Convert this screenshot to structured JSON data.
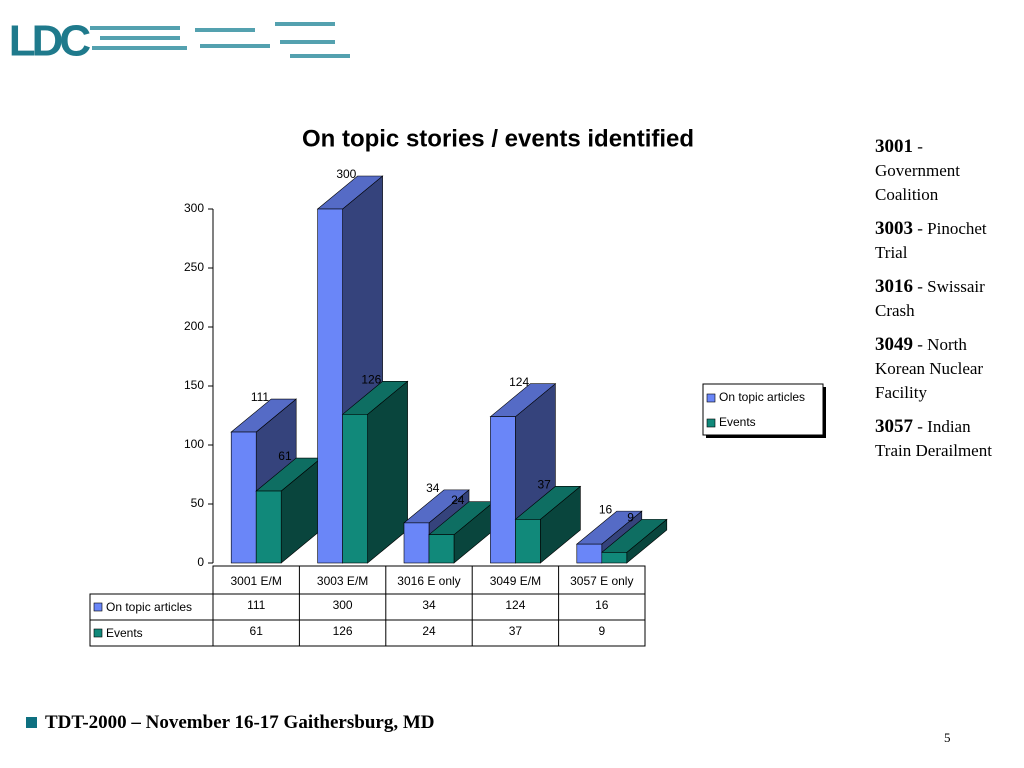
{
  "logo": "LDC",
  "chart_data": {
    "type": "bar3d",
    "title": "On topic stories / events identified",
    "categories": [
      "3001  E/M",
      "3003 E/M",
      "3016 E only",
      "3049 E/M",
      "3057 E only"
    ],
    "series": [
      {
        "name": "On topic articles",
        "color": "#6a86f8",
        "values": [
          111,
          300,
          34,
          124,
          16
        ]
      },
      {
        "name": "Events",
        "color": "#11897a",
        "values": [
          61,
          126,
          24,
          37,
          9
        ]
      }
    ],
    "ylim": [
      0,
      300
    ],
    "yticks": [
      0,
      50,
      100,
      150,
      200,
      250,
      300
    ],
    "legend": "right",
    "data_table": true
  },
  "sidebar": [
    {
      "code": "3001",
      "desc": "- Government Coalition"
    },
    {
      "code": "3003",
      "desc": "- Pinochet Trial"
    },
    {
      "code": "3016",
      "desc": "- Swissair Crash"
    },
    {
      "code": "3049",
      "desc": "- North Korean Nuclear Facility"
    },
    {
      "code": "3057",
      "desc": "- Indian Train Derailment"
    }
  ],
  "footer": {
    "text": "TDT-2000 – November 16-17 Gaithersburg,  MD",
    "page": "5"
  }
}
